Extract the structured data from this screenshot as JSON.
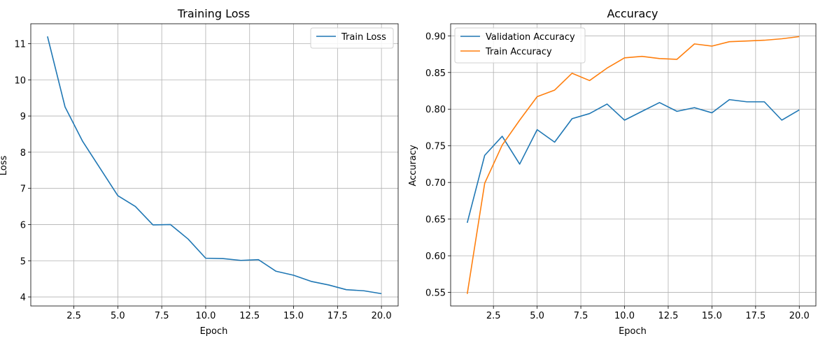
{
  "chart_data": [
    {
      "type": "line",
      "title": "Training Loss",
      "xlabel": "Epoch",
      "ylabel": "Loss",
      "xlim": [
        0.05,
        20.95
      ],
      "ylim": [
        3.75,
        11.55
      ],
      "xticks": [
        2.5,
        5.0,
        7.5,
        10.0,
        12.5,
        15.0,
        17.5,
        20.0
      ],
      "xtick_labels": [
        "2.5",
        "5.0",
        "7.5",
        "10.0",
        "12.5",
        "15.0",
        "17.5",
        "20.0"
      ],
      "yticks": [
        4,
        5,
        6,
        7,
        8,
        9,
        10,
        11
      ],
      "ytick_labels": [
        "4",
        "5",
        "6",
        "7",
        "8",
        "9",
        "10",
        "11"
      ],
      "grid": true,
      "legend_position": "top-right",
      "x": [
        1,
        2,
        3,
        4,
        5,
        6,
        7,
        8,
        9,
        10,
        11,
        12,
        13,
        14,
        15,
        16,
        17,
        18,
        19,
        20
      ],
      "series": [
        {
          "name": "Train Loss",
          "color": "#1f77b4",
          "values": [
            11.2,
            9.25,
            8.3,
            7.55,
            6.8,
            6.5,
            5.99,
            6.0,
            5.6,
            5.07,
            5.06,
            5.01,
            5.03,
            4.71,
            4.6,
            4.43,
            4.33,
            4.2,
            4.17,
            4.09
          ]
        }
      ]
    },
    {
      "type": "line",
      "title": "Accuracy",
      "xlabel": "Epoch",
      "ylabel": "Accuracy",
      "xlim": [
        0.05,
        20.95
      ],
      "ylim": [
        0.5315,
        0.9165
      ],
      "xticks": [
        2.5,
        5.0,
        7.5,
        10.0,
        12.5,
        15.0,
        17.5,
        20.0
      ],
      "xtick_labels": [
        "2.5",
        "5.0",
        "7.5",
        "10.0",
        "12.5",
        "15.0",
        "17.5",
        "20.0"
      ],
      "yticks": [
        0.55,
        0.6,
        0.65,
        0.7,
        0.75,
        0.8,
        0.85,
        0.9
      ],
      "ytick_labels": [
        "0.55",
        "0.60",
        "0.65",
        "0.70",
        "0.75",
        "0.80",
        "0.85",
        "0.90"
      ],
      "grid": true,
      "legend_position": "top-left",
      "x": [
        1,
        2,
        3,
        4,
        5,
        6,
        7,
        8,
        9,
        10,
        11,
        12,
        13,
        14,
        15,
        16,
        17,
        18,
        19,
        20
      ],
      "series": [
        {
          "name": "Validation Accuracy",
          "color": "#1f77b4",
          "values": [
            0.645,
            0.737,
            0.763,
            0.725,
            0.772,
            0.755,
            0.787,
            0.794,
            0.807,
            0.785,
            0.797,
            0.809,
            0.797,
            0.802,
            0.795,
            0.813,
            0.81,
            0.81,
            0.785,
            0.799
          ]
        },
        {
          "name": "Train Accuracy",
          "color": "#ff7f0e",
          "values": [
            0.548,
            0.699,
            0.751,
            0.785,
            0.817,
            0.826,
            0.849,
            0.839,
            0.856,
            0.87,
            0.872,
            0.869,
            0.868,
            0.889,
            0.886,
            0.892,
            0.893,
            0.894,
            0.896,
            0.899
          ]
        }
      ]
    }
  ]
}
